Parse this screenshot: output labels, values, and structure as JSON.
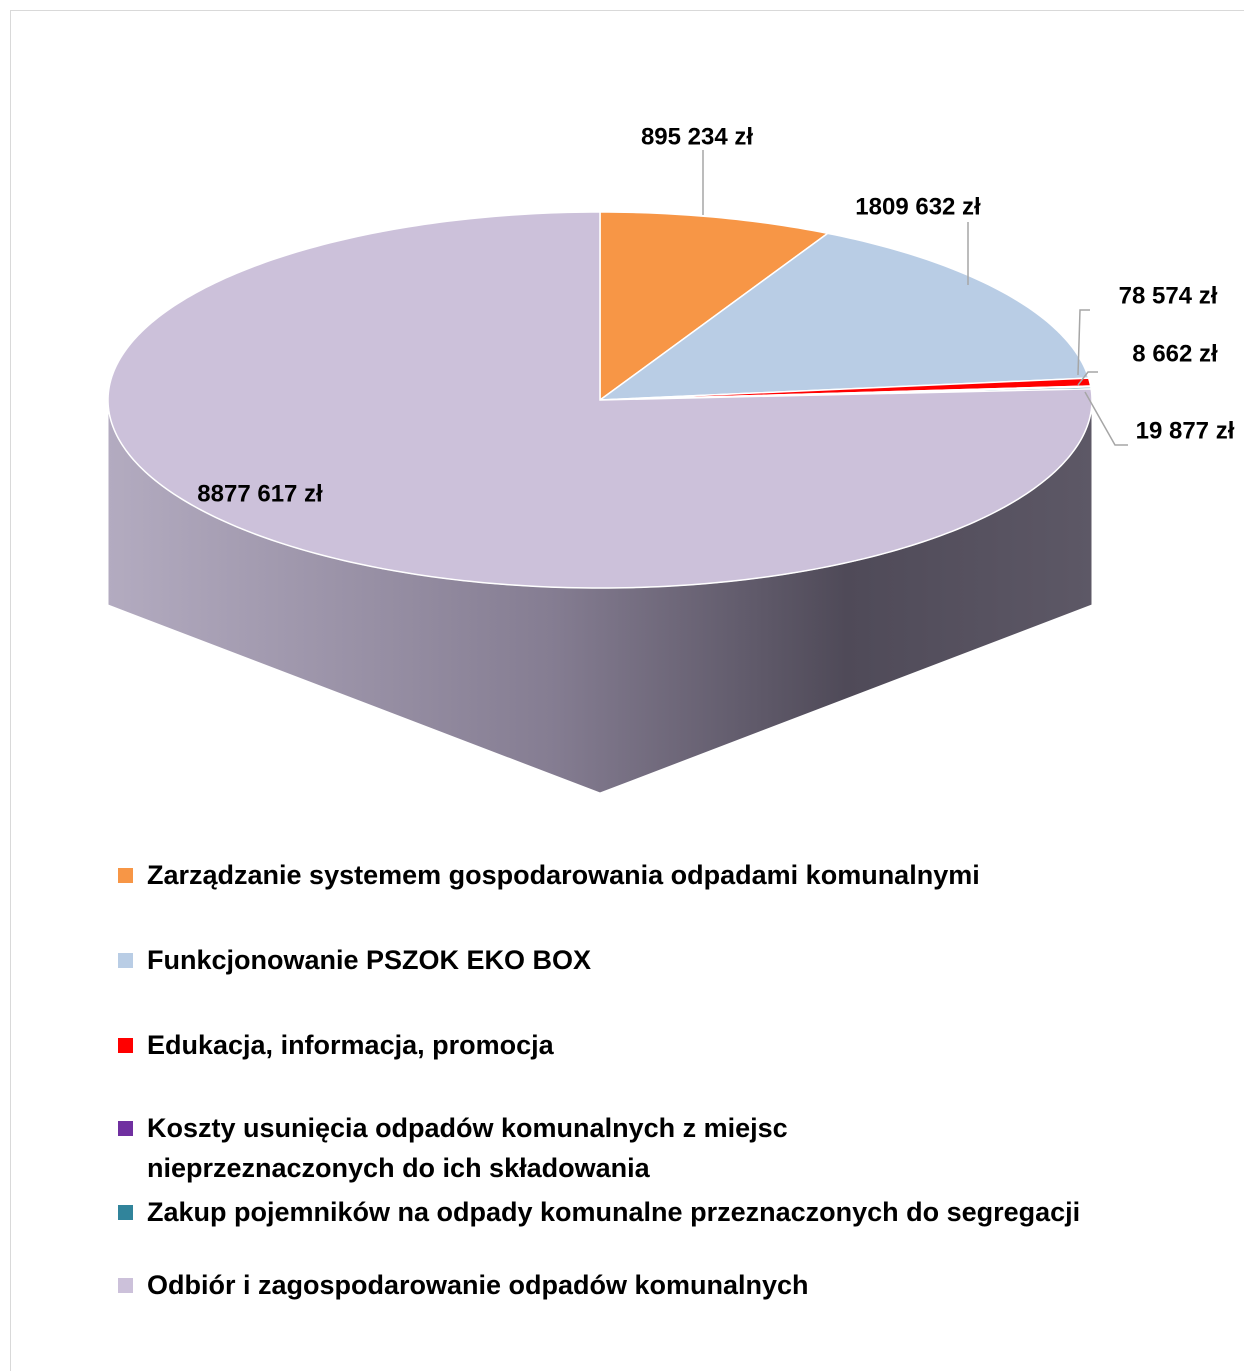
{
  "chart_data": {
    "type": "pie",
    "3d": true,
    "categories": [
      "Zarządzanie systemem gospodarowania odpadami komunalnymi",
      "Funkcjonowanie PSZOK EKO BOX",
      "Edukacja, informacja, promocja",
      "Koszty usunięcia odpadów komunalnych z miejsc nieprzeznaczonych do ich składowania",
      "Zakup pojemników na odpady komunalne przeznaczonych do segregacji",
      "Odbiór i zagospodarowanie odpadów komunalnych"
    ],
    "values": [
      895234,
      1809632,
      78574,
      8662,
      19877,
      8877617
    ],
    "value_labels": [
      "895 234 zł",
      "1809 632 zł",
      "78 574 zł",
      "8 662 zł",
      "19 877 zł",
      "8877 617 zł"
    ],
    "colors": [
      "#f79646",
      "#b9cde5",
      "#ff0000",
      "#7030a0",
      "#31849b",
      "#ccc1da"
    ],
    "legend": "bottom"
  }
}
